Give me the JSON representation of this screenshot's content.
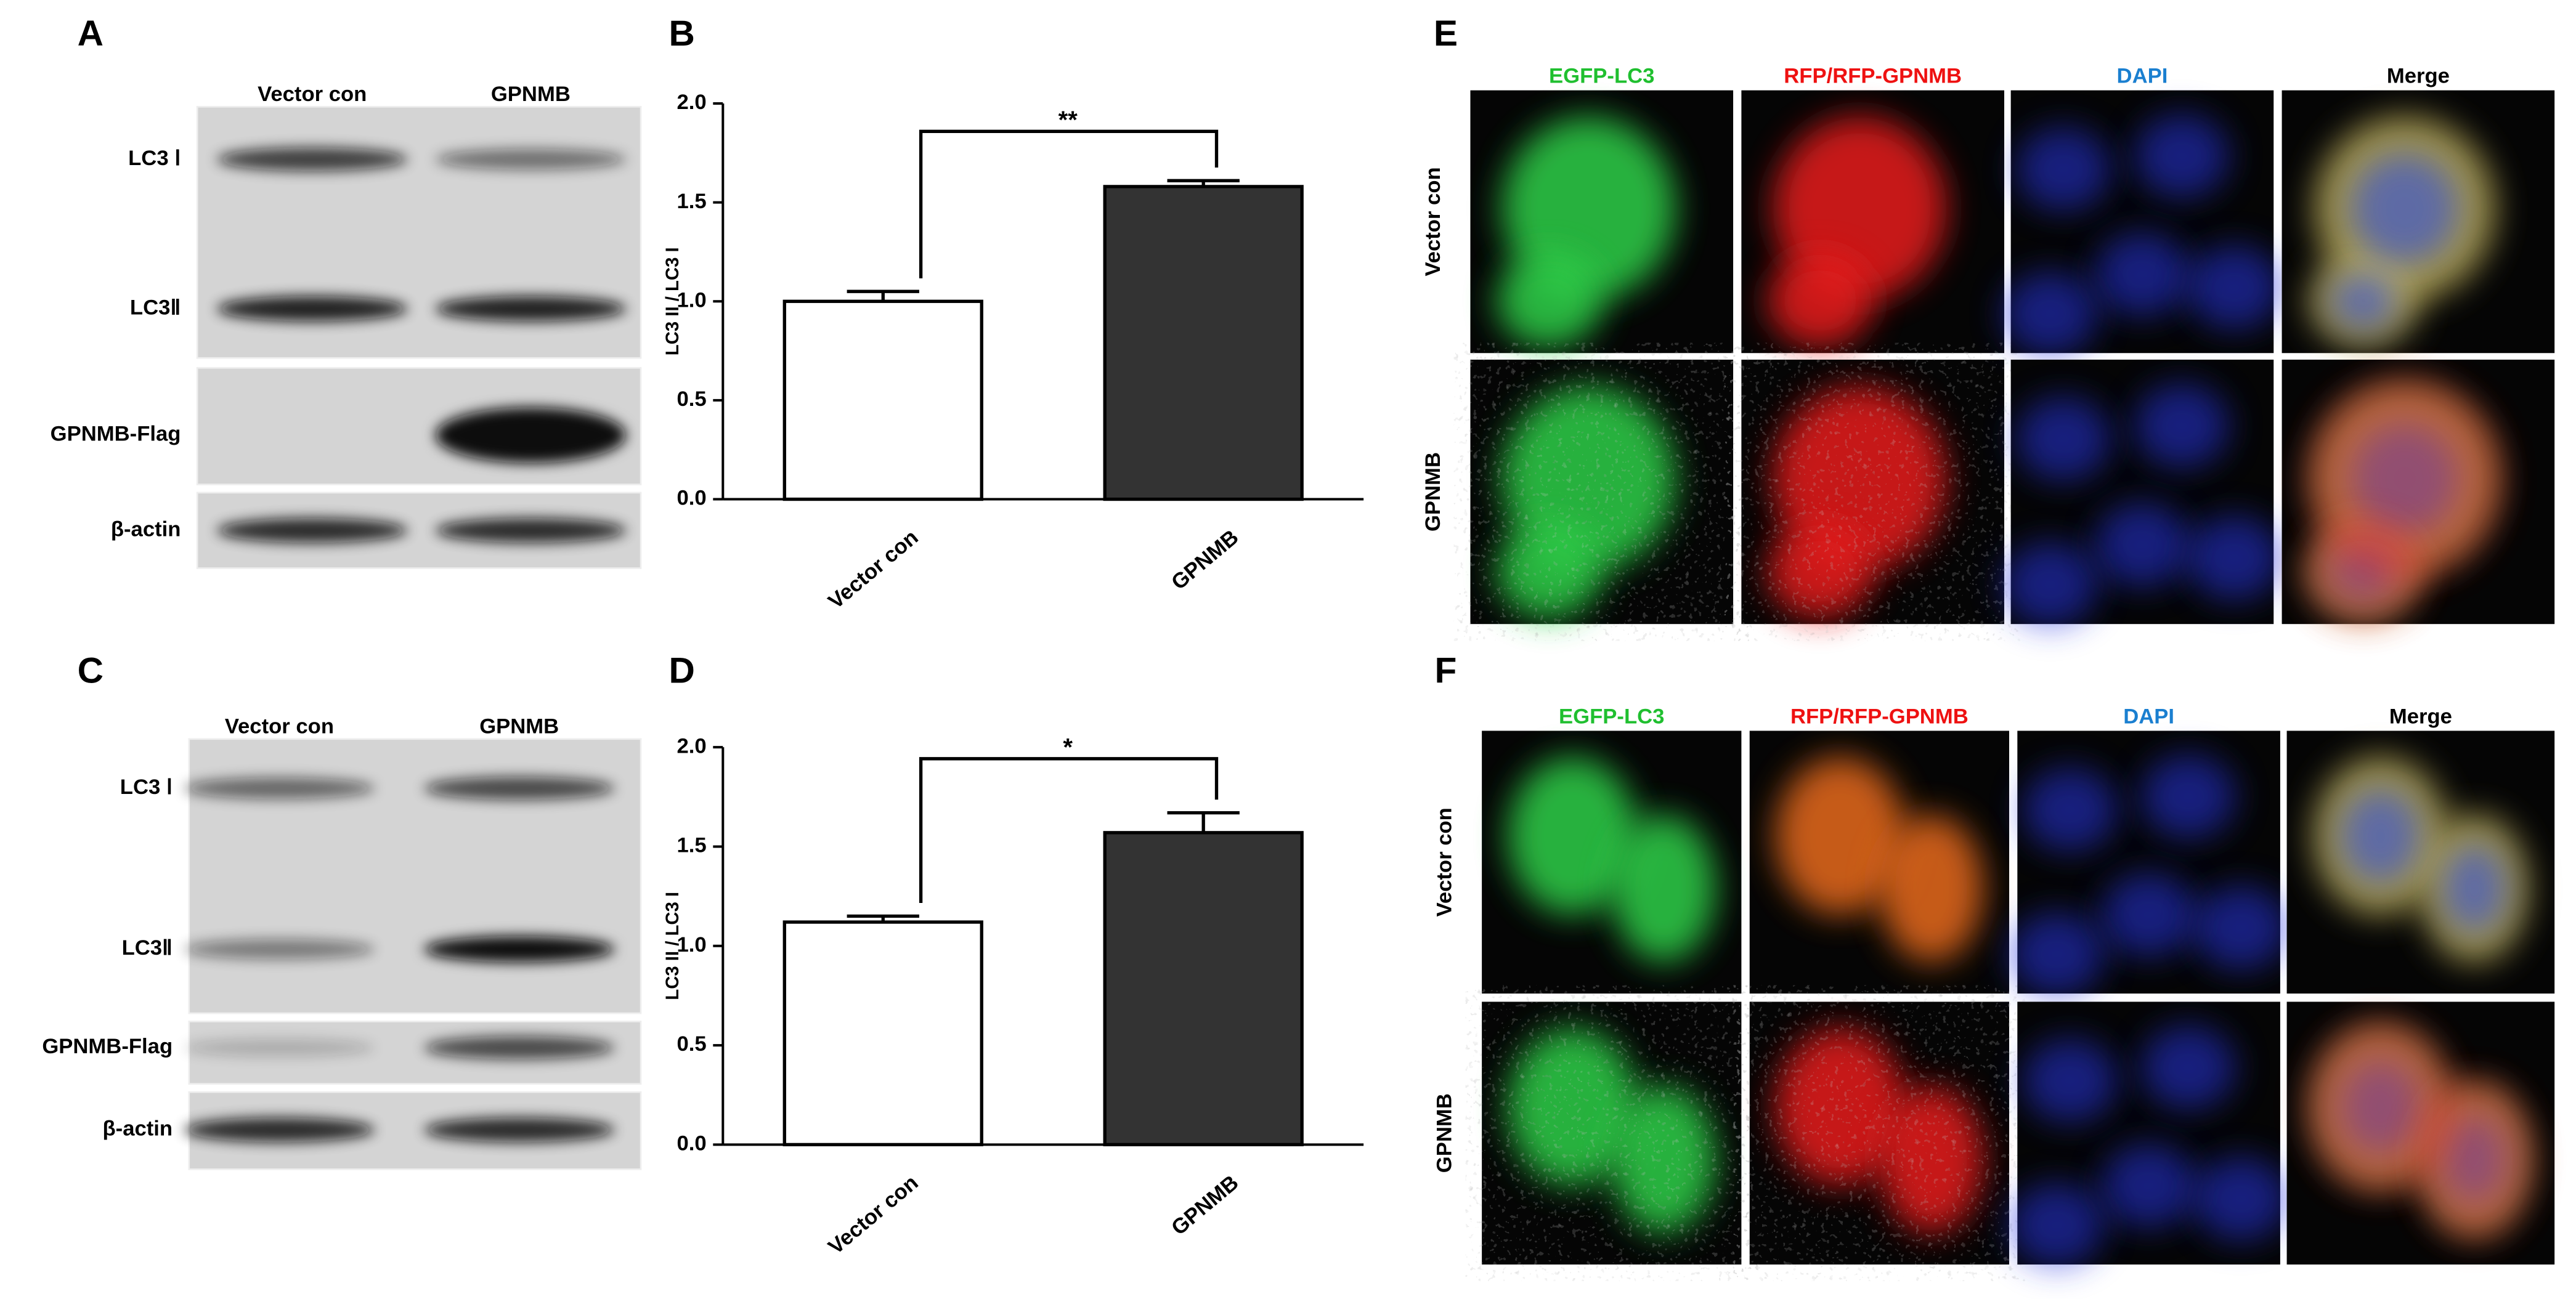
{
  "blots": [
    {
      "label": "A",
      "lanes": [
        "Vector con",
        "GPNMB"
      ],
      "rows": [
        "LC3 Ⅰ",
        "LC3Ⅱ",
        "GPNMB-Flag",
        "β-actin"
      ]
    },
    {
      "label": "C",
      "lanes": [
        "Vector con",
        "GPNMB"
      ],
      "rows": [
        "LC3 Ⅰ",
        "LC3Ⅱ",
        "GPNMB-Flag",
        "β-actin"
      ]
    }
  ],
  "chart_data": [
    {
      "type": "bar",
      "label": "B",
      "ylabel": "LC3 II / LC3 I",
      "categories": [
        "Vector con",
        "GPNMB"
      ],
      "values": [
        1.0,
        1.58
      ],
      "errors": [
        0.05,
        0.03
      ],
      "colors": [
        "#ffffff",
        "#333333"
      ],
      "annotation": "**",
      "ylim": [
        0,
        2.0
      ],
      "yticks": [
        {
          "value": 0,
          "label": "0.0"
        },
        {
          "value": 0.5,
          "label": "0.5"
        },
        {
          "value": 1.0,
          "label": "1.0"
        },
        {
          "value": 1.5,
          "label": "1.5"
        },
        {
          "value": 2.0,
          "label": "2.0"
        }
      ]
    },
    {
      "type": "bar",
      "label": "D",
      "ylabel": "LC3 II / LC3 I",
      "categories": [
        "Vector con",
        "GPNMB"
      ],
      "values": [
        1.12,
        1.57
      ],
      "errors": [
        0.03,
        0.1
      ],
      "colors": [
        "#ffffff",
        "#333333"
      ],
      "annotation": "*",
      "ylim": [
        0,
        2.0
      ],
      "yticks": [
        {
          "value": 0,
          "label": "0.0"
        },
        {
          "value": 0.5,
          "label": "0.5"
        },
        {
          "value": 1.0,
          "label": "1.0"
        },
        {
          "value": 1.5,
          "label": "1.5"
        },
        {
          "value": 2.0,
          "label": "2.0"
        }
      ]
    }
  ],
  "micrographs": [
    {
      "label": "E",
      "channels": [
        {
          "name": "EGFP-LC3",
          "color": "#1fbf2f"
        },
        {
          "name": "RFP/RFP-GPNMB",
          "color": "#ee1111"
        },
        {
          "name": "DAPI",
          "color": "#1a7fd0"
        },
        {
          "name": "Merge",
          "color": "#000000"
        }
      ],
      "conditions": [
        "Vector con",
        "GPNMB"
      ]
    },
    {
      "label": "F",
      "channels": [
        {
          "name": "EGFP-LC3",
          "color": "#1fbf2f"
        },
        {
          "name": "RFP/RFP-GPNMB",
          "color": "#ee1111"
        },
        {
          "name": "DAPI",
          "color": "#1a7fd0"
        },
        {
          "name": "Merge",
          "color": "#000000"
        }
      ],
      "conditions": [
        "Vector con",
        "GPNMB"
      ]
    }
  ]
}
